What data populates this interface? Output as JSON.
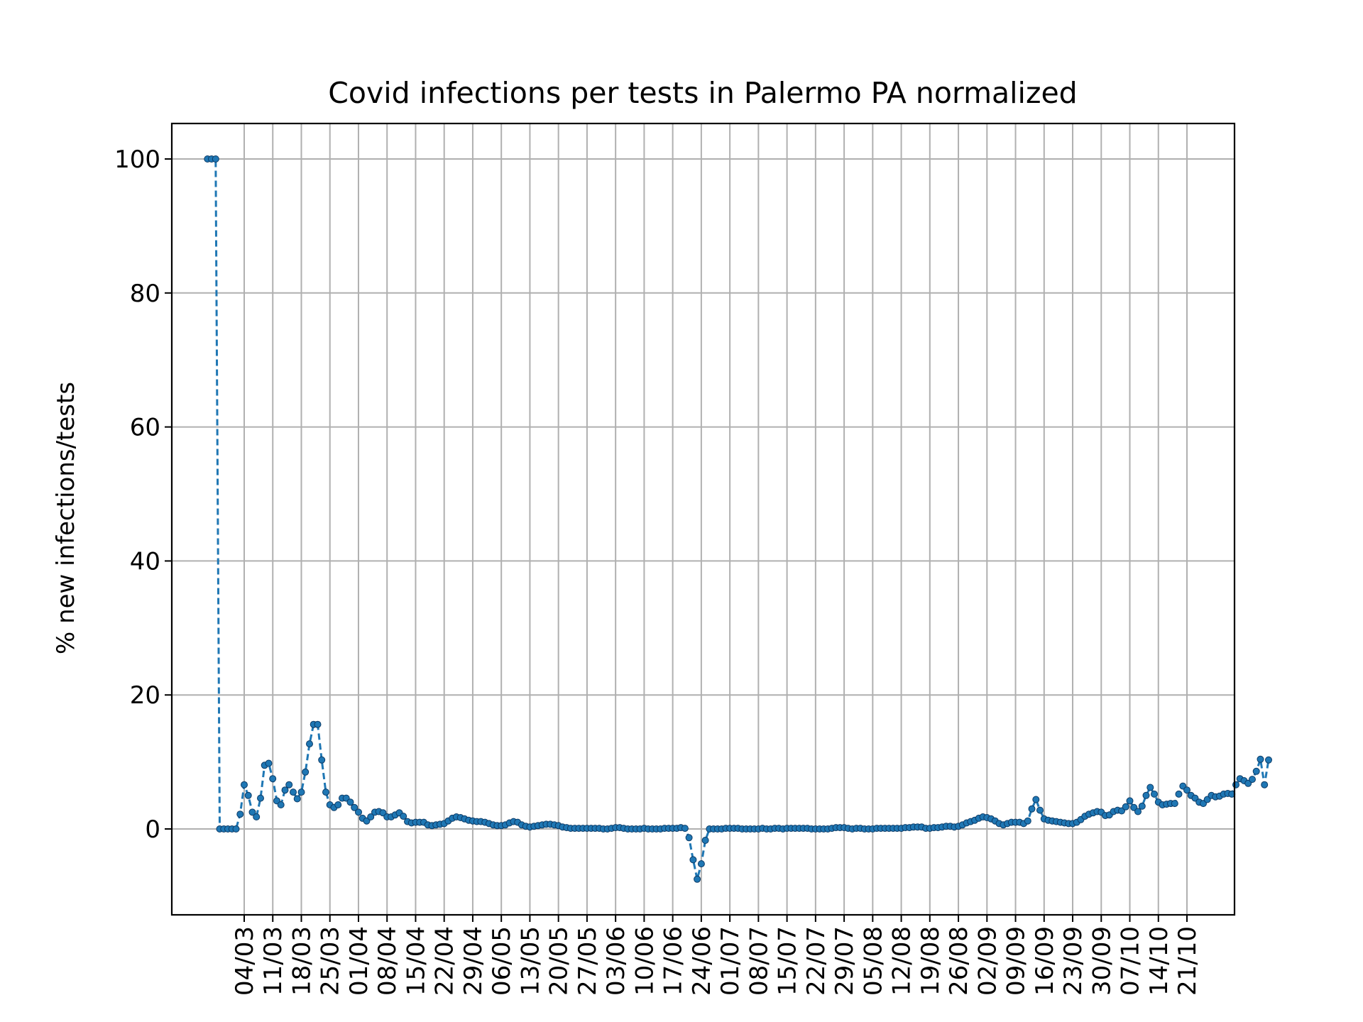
{
  "chart_data": {
    "type": "line",
    "title": "Covid infections per tests in Palermo PA normalized",
    "xlabel": "",
    "ylabel": "% new infections/tests",
    "ylim": [
      -13,
      105
    ],
    "yticks": [
      0,
      20,
      40,
      60,
      80,
      100
    ],
    "xticks": [
      "04/03",
      "11/03",
      "18/03",
      "25/03",
      "01/04",
      "08/04",
      "15/04",
      "22/04",
      "29/04",
      "06/05",
      "13/05",
      "20/05",
      "27/05",
      "03/06",
      "10/06",
      "17/06",
      "24/06",
      "01/07",
      "08/07",
      "15/07",
      "22/07",
      "29/07",
      "05/08",
      "12/08",
      "19/08",
      "26/08",
      "02/09",
      "09/09",
      "16/09",
      "23/09",
      "30/09",
      "07/10",
      "14/10",
      "21/10"
    ],
    "grid": true,
    "legend": "none",
    "x_start": "2020-02-24",
    "x_step_days": 1,
    "series_color": "#1f77b4",
    "marker_color": "#1f77b4",
    "grid_color": "#b0b0b0",
    "series": [
      {
        "values": [
          100,
          100,
          100,
          0,
          0,
          0,
          0,
          0,
          2.2,
          6.6,
          5.0,
          2.5,
          1.8,
          4.6,
          9.5,
          9.8,
          7.5,
          4.2,
          3.6,
          5.8,
          6.6,
          5.5,
          4.5,
          5.5,
          8.5,
          12.7,
          15.6,
          15.6,
          10.3,
          5.5,
          3.6,
          3.2,
          3.6,
          4.6,
          4.6,
          4.0,
          3.2,
          2.5,
          1.6,
          1.2,
          1.8,
          2.5,
          2.6,
          2.4,
          1.8,
          1.8,
          2.1,
          2.4,
          1.9,
          1.1,
          0.9,
          1.0,
          1.0,
          1.0,
          0.6,
          0.5,
          0.6,
          0.7,
          0.8,
          1.2,
          1.6,
          1.8,
          1.7,
          1.5,
          1.3,
          1.2,
          1.1,
          1.1,
          1.0,
          0.8,
          0.6,
          0.5,
          0.5,
          0.6,
          0.9,
          1.1,
          1.0,
          0.6,
          0.4,
          0.3,
          0.4,
          0.5,
          0.6,
          0.7,
          0.7,
          0.6,
          0.5,
          0.3,
          0.2,
          0.1,
          0.1,
          0.1,
          0.1,
          0.1,
          0.1,
          0.1,
          0.1,
          0.0,
          0.0,
          0.1,
          0.2,
          0.2,
          0.1,
          0.0,
          0.0,
          0.0,
          0.0,
          0.1,
          0.0,
          0.0,
          0.0,
          0.0,
          0.1,
          0.1,
          0.1,
          0.1,
          0.2,
          0.1,
          -1.3,
          -4.6,
          -7.5,
          -5.2,
          -1.7,
          0.0,
          0.0,
          0.0,
          0.0,
          0.1,
          0.1,
          0.1,
          0.1,
          0.0,
          0.0,
          0.0,
          0.0,
          0.0,
          0.1,
          0.0,
          0.0,
          0.1,
          0.1,
          0.0,
          0.1,
          0.1,
          0.1,
          0.1,
          0.1,
          0.1,
          0.0,
          0.0,
          0.0,
          0.0,
          0.0,
          0.1,
          0.2,
          0.2,
          0.2,
          0.1,
          0.0,
          0.1,
          0.1,
          0.0,
          0.0,
          0.0,
          0.1,
          0.1,
          0.1,
          0.1,
          0.1,
          0.1,
          0.1,
          0.2,
          0.2,
          0.3,
          0.3,
          0.3,
          0.1,
          0.1,
          0.2,
          0.2,
          0.3,
          0.4,
          0.4,
          0.3,
          0.4,
          0.6,
          0.9,
          1.1,
          1.3,
          1.6,
          1.8,
          1.7,
          1.5,
          1.2,
          0.8,
          0.6,
          0.8,
          1.0,
          1.0,
          1.0,
          0.8,
          1.2,
          3.0,
          4.4,
          2.8,
          1.5,
          1.3,
          1.2,
          1.1,
          1.0,
          0.9,
          0.8,
          0.8,
          1.0,
          1.4,
          1.9,
          2.2,
          2.4,
          2.6,
          2.5,
          2.0,
          2.1,
          2.6,
          2.8,
          2.7,
          3.3,
          4.2,
          3.2,
          2.6,
          3.4,
          5.0,
          6.2,
          5.2,
          4.0,
          3.6,
          3.7,
          3.8,
          3.8,
          5.2,
          6.4,
          5.8,
          5.0,
          4.6,
          4.0,
          3.8,
          4.4,
          5.0,
          4.8,
          4.9,
          5.2,
          5.3,
          5.2,
          6.6,
          7.5,
          7.2,
          6.8,
          7.4,
          8.6,
          10.4,
          6.6,
          10.3
        ]
      }
    ]
  }
}
